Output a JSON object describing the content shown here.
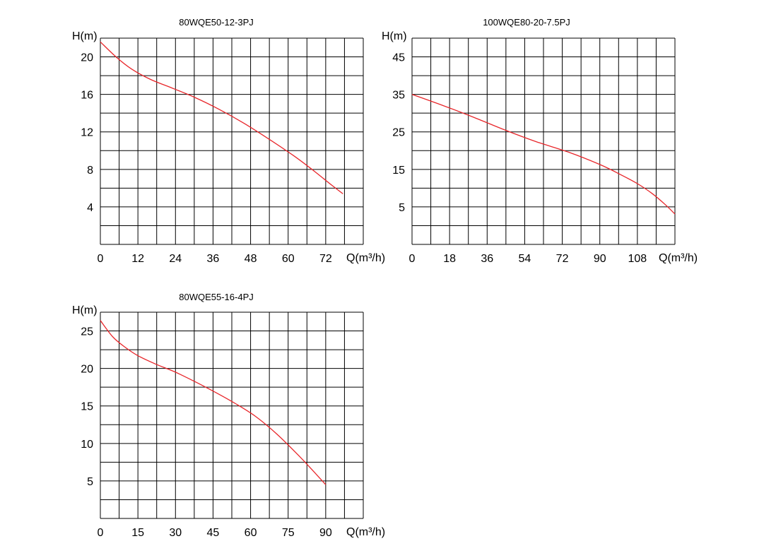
{
  "chart_data": [
    {
      "type": "line",
      "title": "80WQE50-12-3PJ",
      "ylabel": "H(m)",
      "xlabel": "Q(m³/h)",
      "x_ticks": [
        0,
        12,
        24,
        36,
        48,
        60,
        72
      ],
      "y_ticks": [
        4,
        8,
        12,
        16,
        20
      ],
      "xlim": [
        0,
        84
      ],
      "ylim": [
        0,
        22
      ],
      "grid": true,
      "series": [
        {
          "color": "#e8262a",
          "x": [
            0,
            5,
            10,
            16,
            22,
            30,
            38,
            46,
            54,
            62,
            68,
            74,
            77.5
          ],
          "y": [
            21.6,
            20.0,
            18.7,
            17.6,
            16.8,
            15.7,
            14.4,
            12.9,
            11.2,
            9.4,
            7.9,
            6.3,
            5.4
          ]
        }
      ]
    },
    {
      "type": "line",
      "title": "100WQE80-20-7.5PJ",
      "ylabel": "H(m)",
      "xlabel": "Q(m³/h)",
      "x_ticks": [
        0,
        18,
        36,
        54,
        72,
        90,
        108
      ],
      "y_ticks": [
        5,
        15,
        25,
        35,
        45
      ],
      "xlim": [
        0,
        126
      ],
      "ylim": [
        -5,
        50
      ],
      "grid": true,
      "series": [
        {
          "color": "#e8262a",
          "x": [
            0,
            15,
            30,
            45,
            60,
            75,
            90,
            100,
            108,
            115,
            121,
            126
          ],
          "y": [
            35,
            32,
            28.8,
            25.4,
            22.3,
            19.6,
            16.3,
            13.6,
            11.2,
            8.6,
            5.8,
            3.1
          ]
        }
      ]
    },
    {
      "type": "line",
      "title": "80WQE55-16-4PJ",
      "ylabel": "H(m)",
      "xlabel": "Q(m³/h)",
      "x_ticks": [
        0,
        15,
        30,
        45,
        60,
        75,
        90
      ],
      "y_ticks": [
        5,
        10,
        15,
        20,
        25
      ],
      "xlim": [
        0,
        105
      ],
      "ylim": [
        0,
        27.5
      ],
      "grid": true,
      "series": [
        {
          "color": "#e8262a",
          "x": [
            0,
            5,
            10,
            15,
            22,
            30,
            38,
            46,
            54,
            62,
            70,
            78,
            84,
            90
          ],
          "y": [
            26.4,
            24.2,
            22.8,
            21.7,
            20.6,
            19.5,
            18.2,
            16.8,
            15.3,
            13.6,
            11.4,
            8.8,
            6.7,
            4.5
          ]
        }
      ]
    }
  ]
}
